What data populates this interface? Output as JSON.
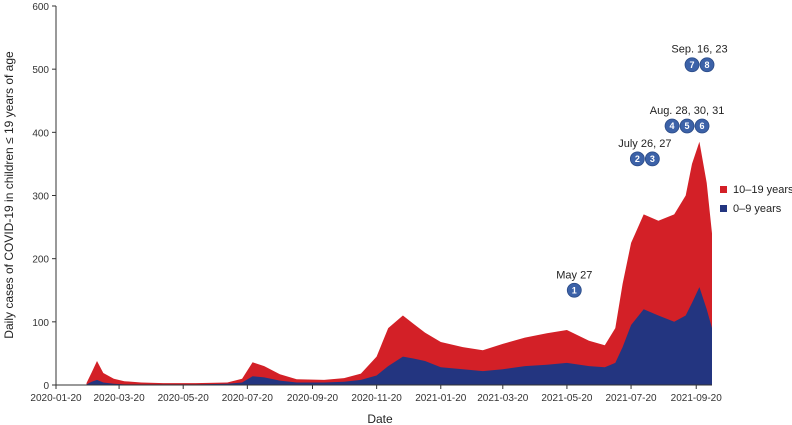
{
  "chart_data": {
    "type": "area",
    "stacked": true,
    "xlabel": "Date",
    "ylabel": "Daily cases of COVID-19 in children ≤ 19 years of age",
    "ylim": [
      0,
      600
    ],
    "yticks": [
      "0",
      "100",
      "200",
      "300",
      "400",
      "500",
      "600"
    ],
    "xlim": [
      "2020-01-20",
      "2021-10-05"
    ],
    "xticks": [
      "2020-01-20",
      "2020-03-20",
      "2020-05-20",
      "2020-07-20",
      "2020-09-20",
      "2020-11-20",
      "2021-01-20",
      "2021-03-20",
      "2021-05-20",
      "2021-07-20",
      "2021-09-20"
    ],
    "grid": false,
    "legend_position": "right",
    "series": [
      {
        "name": "0–9 years",
        "color": "#233580",
        "x": [
          "2020-02-18",
          "2020-02-23",
          "2020-02-28",
          "2020-03-05",
          "2020-03-15",
          "2020-03-25",
          "2020-04-10",
          "2020-05-01",
          "2020-06-01",
          "2020-07-01",
          "2020-07-15",
          "2020-07-25",
          "2020-08-05",
          "2020-08-20",
          "2020-09-05",
          "2020-10-01",
          "2020-10-20",
          "2020-11-05",
          "2020-11-20",
          "2020-12-01",
          "2020-12-15",
          "2020-12-25",
          "2021-01-05",
          "2021-01-20",
          "2021-02-10",
          "2021-03-01",
          "2021-03-20",
          "2021-04-10",
          "2021-05-01",
          "2021-05-20",
          "2021-06-10",
          "2021-06-25",
          "2021-07-05",
          "2021-07-12",
          "2021-07-20",
          "2021-08-01",
          "2021-08-15",
          "2021-08-30",
          "2021-09-10",
          "2021-09-16",
          "2021-09-23",
          "2021-09-30",
          "2021-10-05"
        ],
        "y": [
          1,
          5,
          8,
          4,
          2,
          1,
          1,
          1,
          1,
          2,
          4,
          14,
          12,
          7,
          4,
          4,
          5,
          8,
          15,
          30,
          45,
          42,
          38,
          28,
          25,
          22,
          25,
          30,
          32,
          35,
          30,
          28,
          35,
          60,
          95,
          120,
          110,
          100,
          110,
          130,
          155,
          120,
          90
        ]
      },
      {
        "name": "10–19 years",
        "color": "#d32027",
        "x": [
          "2020-02-18",
          "2020-02-23",
          "2020-02-28",
          "2020-03-05",
          "2020-03-15",
          "2020-03-25",
          "2020-04-10",
          "2020-05-01",
          "2020-06-01",
          "2020-07-01",
          "2020-07-15",
          "2020-07-25",
          "2020-08-05",
          "2020-08-20",
          "2020-09-05",
          "2020-10-01",
          "2020-10-20",
          "2020-11-05",
          "2020-11-20",
          "2020-12-01",
          "2020-12-15",
          "2020-12-25",
          "2021-01-05",
          "2021-01-20",
          "2021-02-10",
          "2021-03-01",
          "2021-03-20",
          "2021-04-10",
          "2021-05-01",
          "2021-05-20",
          "2021-06-10",
          "2021-06-25",
          "2021-07-05",
          "2021-07-12",
          "2021-07-20",
          "2021-08-01",
          "2021-08-15",
          "2021-08-30",
          "2021-09-10",
          "2021-09-16",
          "2021-09-23",
          "2021-09-30",
          "2021-10-05"
        ],
        "y": [
          2,
          15,
          30,
          15,
          8,
          5,
          3,
          2,
          2,
          2,
          6,
          22,
          18,
          10,
          5,
          4,
          6,
          10,
          30,
          60,
          65,
          55,
          45,
          40,
          35,
          33,
          40,
          45,
          50,
          52,
          40,
          35,
          55,
          100,
          130,
          150,
          150,
          170,
          190,
          220,
          230,
          200,
          150
        ]
      }
    ],
    "annotations": [
      {
        "label": "May 27",
        "badges": [
          "1"
        ],
        "date": "2021-05-27",
        "y": 150
      },
      {
        "label": "July 26, 27",
        "badges": [
          "2",
          "3"
        ],
        "date": "2021-07-26",
        "y": 358
      },
      {
        "label": "Aug. 28, 30, 31",
        "badges": [
          "4",
          "5",
          "6"
        ],
        "date": "2021-08-28",
        "y": 410
      },
      {
        "label": "Sep. 16, 23",
        "badges": [
          "7",
          "8"
        ],
        "date": "2021-09-16",
        "y": 507
      }
    ],
    "badge_color": "#3c62a8"
  }
}
